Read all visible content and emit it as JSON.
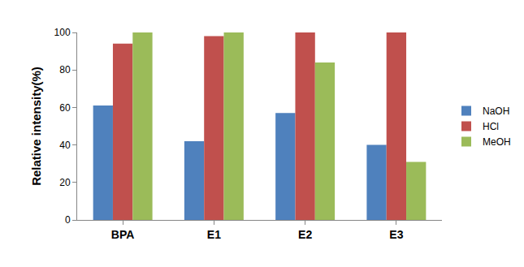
{
  "chart_data": {
    "type": "bar",
    "categories": [
      "BPA",
      "E1",
      "E2",
      "E3"
    ],
    "series": [
      {
        "name": "NaOH",
        "color": "#4f81bd",
        "values": [
          61,
          42,
          57,
          40
        ]
      },
      {
        "name": "HCl",
        "color": "#c0504d",
        "values": [
          94,
          98,
          100,
          100
        ]
      },
      {
        "name": "MeOH",
        "color": "#9bbb59",
        "values": [
          100,
          100,
          84,
          31
        ]
      }
    ],
    "y_label": "Relative intensity(%)",
    "ylim": [
      0,
      100
    ],
    "yticks": [
      0,
      20,
      40,
      60,
      80,
      100
    ],
    "grid": false,
    "legend": "right"
  }
}
